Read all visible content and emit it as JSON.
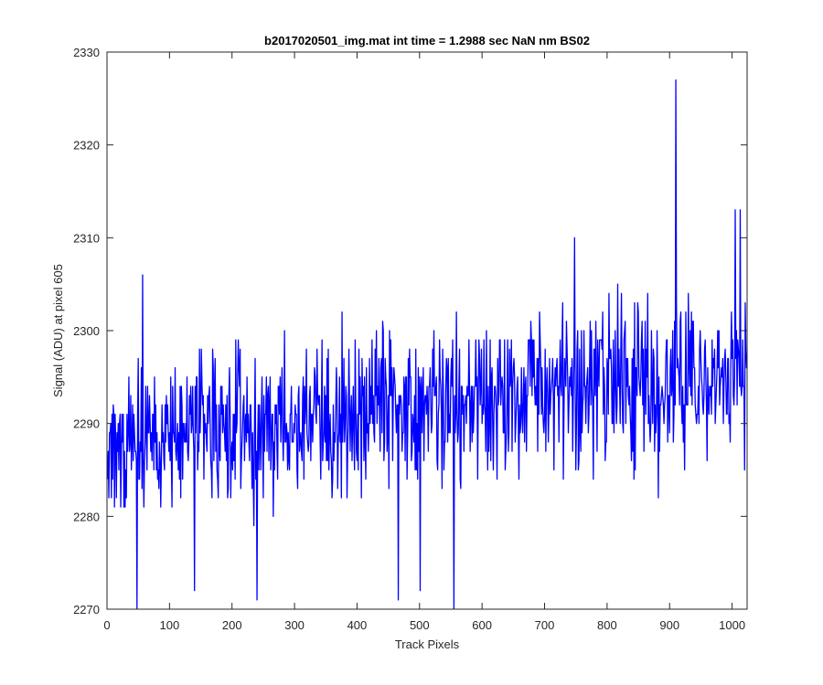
{
  "chart_data": {
    "type": "line",
    "title": "b2017020501_img.mat int time = 1.2988 sec  NaN nm BS02",
    "xlabel": "Track Pixels",
    "ylabel": "Signal (ADU) at pixel 605",
    "xlim": [
      0,
      1024
    ],
    "ylim": [
      2270,
      2330
    ],
    "xticks": [
      0,
      100,
      200,
      300,
      400,
      500,
      600,
      700,
      800,
      900,
      1000
    ],
    "yticks": [
      2270,
      2280,
      2290,
      2300,
      2310,
      2320,
      2330
    ],
    "grid": false,
    "series_color": "#0000ff",
    "series": [
      {
        "n_points": 1024,
        "x_start": 1,
        "trend": {
          "start": 2288,
          "end": 2296
        },
        "noise_amplitude": 6,
        "notable_points": [
          {
            "x": 48,
            "y": 2270
          },
          {
            "x": 57,
            "y": 2306
          },
          {
            "x": 140,
            "y": 2272
          },
          {
            "x": 240,
            "y": 2271
          },
          {
            "x": 466,
            "y": 2271
          },
          {
            "x": 501,
            "y": 2272
          },
          {
            "x": 555,
            "y": 2270
          },
          {
            "x": 748,
            "y": 2310
          },
          {
            "x": 910,
            "y": 2327
          },
          {
            "x": 1005,
            "y": 2313
          },
          {
            "x": 1013,
            "y": 2313
          },
          {
            "x": 1020,
            "y": 2285
          }
        ]
      }
    ]
  }
}
